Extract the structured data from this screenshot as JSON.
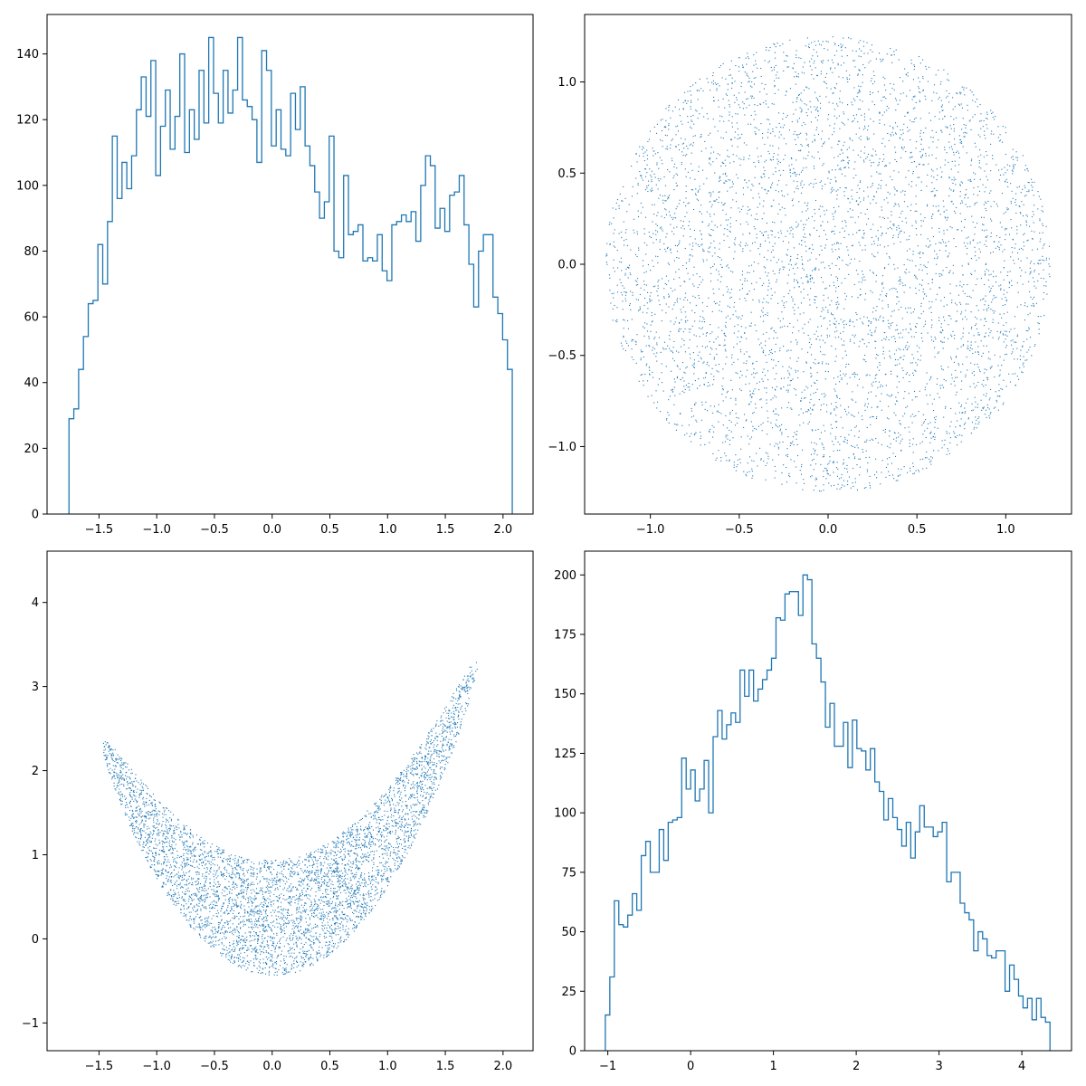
{
  "chart_data": [
    {
      "type": "histogram",
      "panel": "top-left",
      "style": "step",
      "color": "#1f77b4",
      "xlim": [
        -1.95,
        2.26
      ],
      "ylim": [
        0,
        152
      ],
      "xticks": [
        -1.5,
        -1.0,
        -0.5,
        0.0,
        0.5,
        1.0,
        1.5,
        2.0
      ],
      "xtick_labels": [
        "−1.5",
        "−1.0",
        "−0.5",
        "0.0",
        "0.5",
        "1.0",
        "1.5",
        "2.0"
      ],
      "yticks": [
        0,
        20,
        40,
        60,
        80,
        100,
        120,
        140
      ],
      "ytick_labels": [
        "0",
        "20",
        "40",
        "60",
        "80",
        "100",
        "120",
        "140"
      ],
      "bin_start": -1.76,
      "bin_end": 2.08,
      "counts": [
        29,
        32,
        44,
        54,
        64,
        65,
        82,
        70,
        89,
        115,
        96,
        107,
        99,
        109,
        123,
        133,
        121,
        138,
        103,
        118,
        129,
        111,
        121,
        140,
        110,
        123,
        114,
        135,
        119,
        145,
        128,
        119,
        135,
        122,
        129,
        145,
        126,
        124,
        120,
        107,
        141,
        135,
        112,
        123,
        111,
        109,
        128,
        117,
        130,
        112,
        106,
        98,
        90,
        95,
        115,
        80,
        78,
        103,
        85,
        86,
        88,
        77,
        78,
        77,
        85,
        74,
        71,
        88,
        89,
        91,
        89,
        92,
        83,
        100,
        109,
        106,
        87,
        93,
        86,
        97,
        98,
        103,
        88,
        76,
        63,
        80,
        85,
        85,
        66,
        61,
        53,
        44
      ]
    },
    {
      "type": "scatter",
      "panel": "top-right",
      "color": "#1f77b4",
      "xlim": [
        -1.37,
        1.37
      ],
      "ylim": [
        -1.37,
        1.37
      ],
      "xticks": [
        -1.0,
        -0.5,
        0.0,
        0.5,
        1.0
      ],
      "xtick_labels": [
        "−1.0",
        "−0.5",
        "0.0",
        "0.5",
        "1.0"
      ],
      "yticks": [
        -1.0,
        -0.5,
        0.0,
        0.5,
        1.0
      ],
      "ytick_labels": [
        "−1.0",
        "−0.5",
        "0.0",
        "0.5",
        "1.0"
      ],
      "shape": "disk",
      "radius": 1.25,
      "n_points": 5000
    },
    {
      "type": "scatter",
      "panel": "bottom-left",
      "color": "#1f77b4",
      "xlim": [
        -1.95,
        2.26
      ],
      "ylim": [
        -1.33,
        4.61
      ],
      "xticks": [
        -1.5,
        -1.0,
        -0.5,
        0.0,
        0.5,
        1.0,
        1.5,
        2.0
      ],
      "xtick_labels": [
        "−1.5",
        "−1.0",
        "−0.5",
        "0.0",
        "0.5",
        "1.0",
        "1.5",
        "2.0"
      ],
      "yticks": [
        -1,
        0,
        1,
        2,
        3,
        4
      ],
      "ytick_labels": [
        "−1",
        "0",
        "1",
        "2",
        "3",
        "4"
      ],
      "shape": "banana",
      "n_points": 5000
    },
    {
      "type": "histogram",
      "panel": "bottom-right",
      "style": "step",
      "color": "#1f77b4",
      "xlim": [
        -1.28,
        4.6
      ],
      "ylim": [
        0,
        210
      ],
      "xticks": [
        -1,
        0,
        1,
        2,
        3,
        4
      ],
      "xtick_labels": [
        "−1",
        "0",
        "1",
        "2",
        "3",
        "4"
      ],
      "yticks": [
        0,
        25,
        50,
        75,
        100,
        125,
        150,
        175,
        200
      ],
      "ytick_labels": [
        "0",
        "25",
        "50",
        "75",
        "100",
        "125",
        "150",
        "175",
        "200"
      ],
      "bin_start": -1.03,
      "bin_end": 4.34,
      "counts": [
        15,
        31,
        63,
        53,
        52,
        57,
        66,
        59,
        82,
        88,
        75,
        75,
        93,
        80,
        96,
        97,
        98,
        123,
        110,
        118,
        105,
        110,
        122,
        100,
        132,
        143,
        131,
        137,
        142,
        138,
        160,
        149,
        160,
        147,
        152,
        156,
        160,
        165,
        182,
        181,
        192,
        193,
        193,
        183,
        200,
        198,
        171,
        165,
        155,
        136,
        146,
        128,
        128,
        138,
        119,
        139,
        127,
        126,
        118,
        127,
        113,
        109,
        97,
        106,
        98,
        93,
        86,
        96,
        81,
        92,
        103,
        94,
        94,
        90,
        92,
        96,
        71,
        75,
        75,
        62,
        58,
        55,
        42,
        50,
        47,
        40,
        39,
        42,
        42,
        25,
        36,
        30,
        23,
        18,
        22,
        13,
        22,
        14,
        12
      ]
    }
  ]
}
